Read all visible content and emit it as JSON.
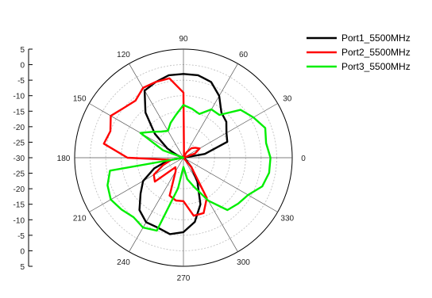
{
  "chart_data": {
    "type": "line",
    "subtype": "polar",
    "title": "",
    "radial_axis": {
      "range": [
        -30,
        5
      ],
      "tick_labels": [
        "5",
        "0",
        "-5",
        "-10",
        "-15",
        "-20",
        "-25",
        "-30",
        "-25",
        "-20",
        "-15",
        "-10",
        "-5",
        "0",
        "5"
      ],
      "rings": [
        -25,
        -20,
        -15,
        -10,
        -5,
        0,
        5
      ]
    },
    "angular_axis": {
      "tick_labels": [
        "0",
        "30",
        "60",
        "90",
        "120",
        "150",
        "180",
        "210",
        "240",
        "270",
        "300",
        "330"
      ],
      "angles_deg": [
        0,
        30,
        60,
        90,
        120,
        150,
        180,
        210,
        240,
        270,
        300,
        330
      ]
    },
    "legend_position": "top-right",
    "series": [
      {
        "name": "Port1_5500MHz",
        "color": "#000000",
        "theta": [
          0,
          10,
          20,
          30,
          40,
          50,
          60,
          70,
          80,
          90,
          100,
          110,
          120,
          130,
          140,
          150,
          160,
          170,
          180,
          190,
          200,
          210,
          220,
          230,
          240,
          250,
          260,
          270,
          280,
          290,
          300,
          310,
          320,
          330,
          340,
          350,
          360
        ],
        "r": [
          -30,
          -23,
          -15,
          -14,
          -12,
          -11,
          -7,
          -4,
          -3,
          -3,
          -3,
          -4,
          -5,
          -11,
          -18,
          -24,
          -28,
          -30,
          -30,
          -25,
          -20,
          -15,
          -12,
          -8,
          -6,
          -6,
          -5,
          -6,
          -9,
          -14,
          -21,
          -26,
          -29,
          -30,
          -30,
          -30,
          -30
        ]
      },
      {
        "name": "Port2_5500MHz",
        "color": "#ff0000",
        "theta": [
          0,
          10,
          20,
          30,
          40,
          50,
          60,
          70,
          80,
          90,
          100,
          110,
          120,
          130,
          140,
          150,
          160,
          170,
          180,
          190,
          200,
          210,
          220,
          230,
          240,
          250,
          260,
          270,
          280,
          290,
          300,
          310,
          320,
          330,
          340,
          350,
          360
        ],
        "r": [
          -30,
          -30,
          -26,
          -24,
          -25,
          -26,
          -28,
          -30,
          -29,
          -9,
          -4,
          -4,
          -4,
          -6,
          -5,
          -3,
          -5,
          -4,
          -12,
          -26,
          -23,
          -19,
          -18,
          -26,
          -25,
          -17,
          -16,
          -16,
          -11,
          -11,
          -15,
          -26,
          -30,
          -30,
          -30,
          -30,
          -30
        ]
      },
      {
        "name": "Port3_5500MHz",
        "color": "#00ee00",
        "theta": [
          0,
          10,
          20,
          30,
          40,
          50,
          60,
          70,
          80,
          90,
          100,
          110,
          120,
          130,
          140,
          150,
          160,
          170,
          180,
          190,
          200,
          210,
          220,
          230,
          240,
          250,
          260,
          270,
          280,
          290,
          300,
          310,
          320,
          330,
          340,
          350,
          360
        ],
        "r": [
          -2,
          -3,
          -2,
          -4,
          -6,
          -12,
          -12,
          -15,
          -14,
          -13,
          -16,
          -18,
          -20,
          -19,
          -17,
          -14,
          -23,
          -30,
          -30,
          -6,
          -4,
          -3,
          -4,
          -5,
          -4,
          -5,
          -20,
          -27,
          -23,
          -20,
          -14,
          -8,
          -7,
          -6,
          -3,
          -2,
          -2
        ]
      }
    ]
  }
}
